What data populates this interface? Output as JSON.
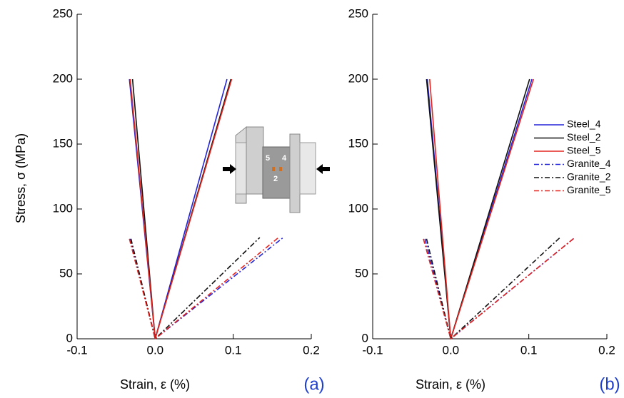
{
  "chart_data": [
    {
      "type": "line",
      "panel_label": "(a)",
      "y_label": "Stress, σ (MPa)",
      "x_label": "Strain, ε (%)",
      "xlim": [
        -0.1,
        0.2
      ],
      "xticks": [
        -0.1,
        {
          "value": 0,
          "label": "0.0"
        },
        0.1,
        0.2
      ],
      "ylim": [
        0,
        250
      ],
      "yticks": [
        0,
        50,
        100,
        150,
        200,
        250
      ],
      "legend": false,
      "inset_labels": [
        "5",
        "4",
        "2"
      ],
      "series": [
        {
          "name": "Steel_4",
          "color": "#2424d8",
          "dash": "solid",
          "x": [
            -0.033,
            0,
            0.092
          ],
          "values": [
            200,
            0,
            200
          ]
        },
        {
          "name": "Steel_2",
          "color": "#111111",
          "dash": "solid",
          "x": [
            -0.029,
            0,
            0.097
          ],
          "values": [
            200,
            0,
            200
          ]
        },
        {
          "name": "Steel_5",
          "color": "#e3241e",
          "dash": "solid",
          "x": [
            -0.032,
            0,
            0.098
          ],
          "values": [
            200,
            0,
            200
          ]
        },
        {
          "name": "Granite_4",
          "color": "#2424d8",
          "dash": "dashdot",
          "x": [
            -0.032,
            0,
            0.164
          ],
          "values": [
            77,
            0,
            78
          ]
        },
        {
          "name": "Granite_2",
          "color": "#111111",
          "dash": "dashdot",
          "x": [
            -0.031,
            0,
            0.134
          ],
          "values": [
            77,
            0,
            78
          ]
        },
        {
          "name": "Granite_5",
          "color": "#e3241e",
          "dash": "dashdot",
          "x": [
            -0.033,
            0,
            0.158
          ],
          "values": [
            77,
            0,
            78
          ]
        }
      ]
    },
    {
      "type": "line",
      "panel_label": "(b)",
      "x_label": "Strain, ε (%)",
      "xlim": [
        -0.1,
        0.2
      ],
      "xticks": [
        -0.1,
        {
          "value": 0,
          "label": "0.0"
        },
        0.1,
        0.2
      ],
      "ylim": [
        0,
        250
      ],
      "yticks": [
        0,
        50,
        100,
        150,
        200,
        250
      ],
      "legend": true,
      "series": [
        {
          "name": "Steel_4",
          "color": "#2424d8",
          "dash": "solid",
          "x": [
            -0.03,
            0,
            0.104
          ],
          "values": [
            200,
            0,
            200
          ]
        },
        {
          "name": "Steel_2",
          "color": "#111111",
          "dash": "solid",
          "x": [
            -0.031,
            0,
            0.101
          ],
          "values": [
            200,
            0,
            200
          ]
        },
        {
          "name": "Steel_5",
          "color": "#e3241e",
          "dash": "solid",
          "x": [
            -0.027,
            0,
            0.106
          ],
          "values": [
            200,
            0,
            200
          ]
        },
        {
          "name": "Granite_4",
          "color": "#2424d8",
          "dash": "dashdot",
          "x": [
            -0.033,
            0,
            0.159
          ],
          "values": [
            77,
            0,
            78
          ]
        },
        {
          "name": "Granite_2",
          "color": "#111111",
          "dash": "dashdot",
          "x": [
            -0.031,
            0,
            0.14
          ],
          "values": [
            77,
            0,
            78
          ]
        },
        {
          "name": "Granite_5",
          "color": "#e3241e",
          "dash": "dashdot",
          "x": [
            -0.035,
            0,
            0.159
          ],
          "values": [
            77,
            0,
            78
          ]
        }
      ]
    }
  ]
}
